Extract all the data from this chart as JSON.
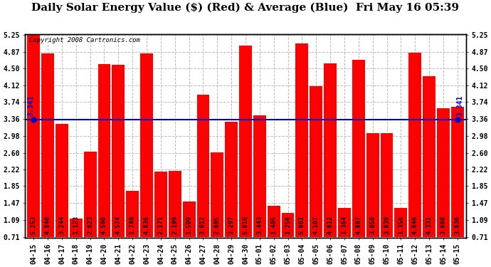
{
  "title": "Daily Solar Energy Value ($) (Red) & Average (Blue)  Fri May 16 05:39",
  "copyright": "Copyright 2008 Cartronics.com",
  "average": 3.341,
  "average_label": "3.341",
  "bar_color": "#ff0000",
  "average_color": "#0000cc",
  "background_color": "#ffffff",
  "plot_bg_color": "#ffffff",
  "grid_color": "#bbbbbb",
  "categories": [
    "04-15",
    "04-16",
    "04-17",
    "04-18",
    "04-19",
    "04-20",
    "04-21",
    "04-22",
    "04-23",
    "04-24",
    "04-25",
    "04-26",
    "04-27",
    "04-28",
    "04-29",
    "04-30",
    "05-01",
    "05-02",
    "05-03",
    "05-04",
    "05-05",
    "05-06",
    "05-07",
    "05-08",
    "05-09",
    "05-10",
    "05-11",
    "05-12",
    "05-13",
    "05-14",
    "05-15"
  ],
  "values": [
    5.253,
    4.84,
    3.244,
    1.123,
    2.623,
    4.59,
    4.574,
    1.749,
    4.836,
    2.171,
    2.199,
    1.509,
    3.912,
    2.605,
    3.297,
    5.016,
    3.443,
    1.405,
    1.25,
    5.061,
    4.107,
    4.612,
    1.364,
    4.687,
    3.05,
    3.039,
    1.356,
    4.846,
    4.331,
    3.608,
    3.636
  ],
  "yticks": [
    0.71,
    1.09,
    1.47,
    1.85,
    2.22,
    2.6,
    2.98,
    3.36,
    3.74,
    4.12,
    4.5,
    4.87,
    5.25
  ],
  "ymin": 0.71,
  "ymax": 5.25,
  "title_fontsize": 11,
  "tick_fontsize": 7,
  "label_fontsize": 6.2,
  "copyright_fontsize": 6.5
}
